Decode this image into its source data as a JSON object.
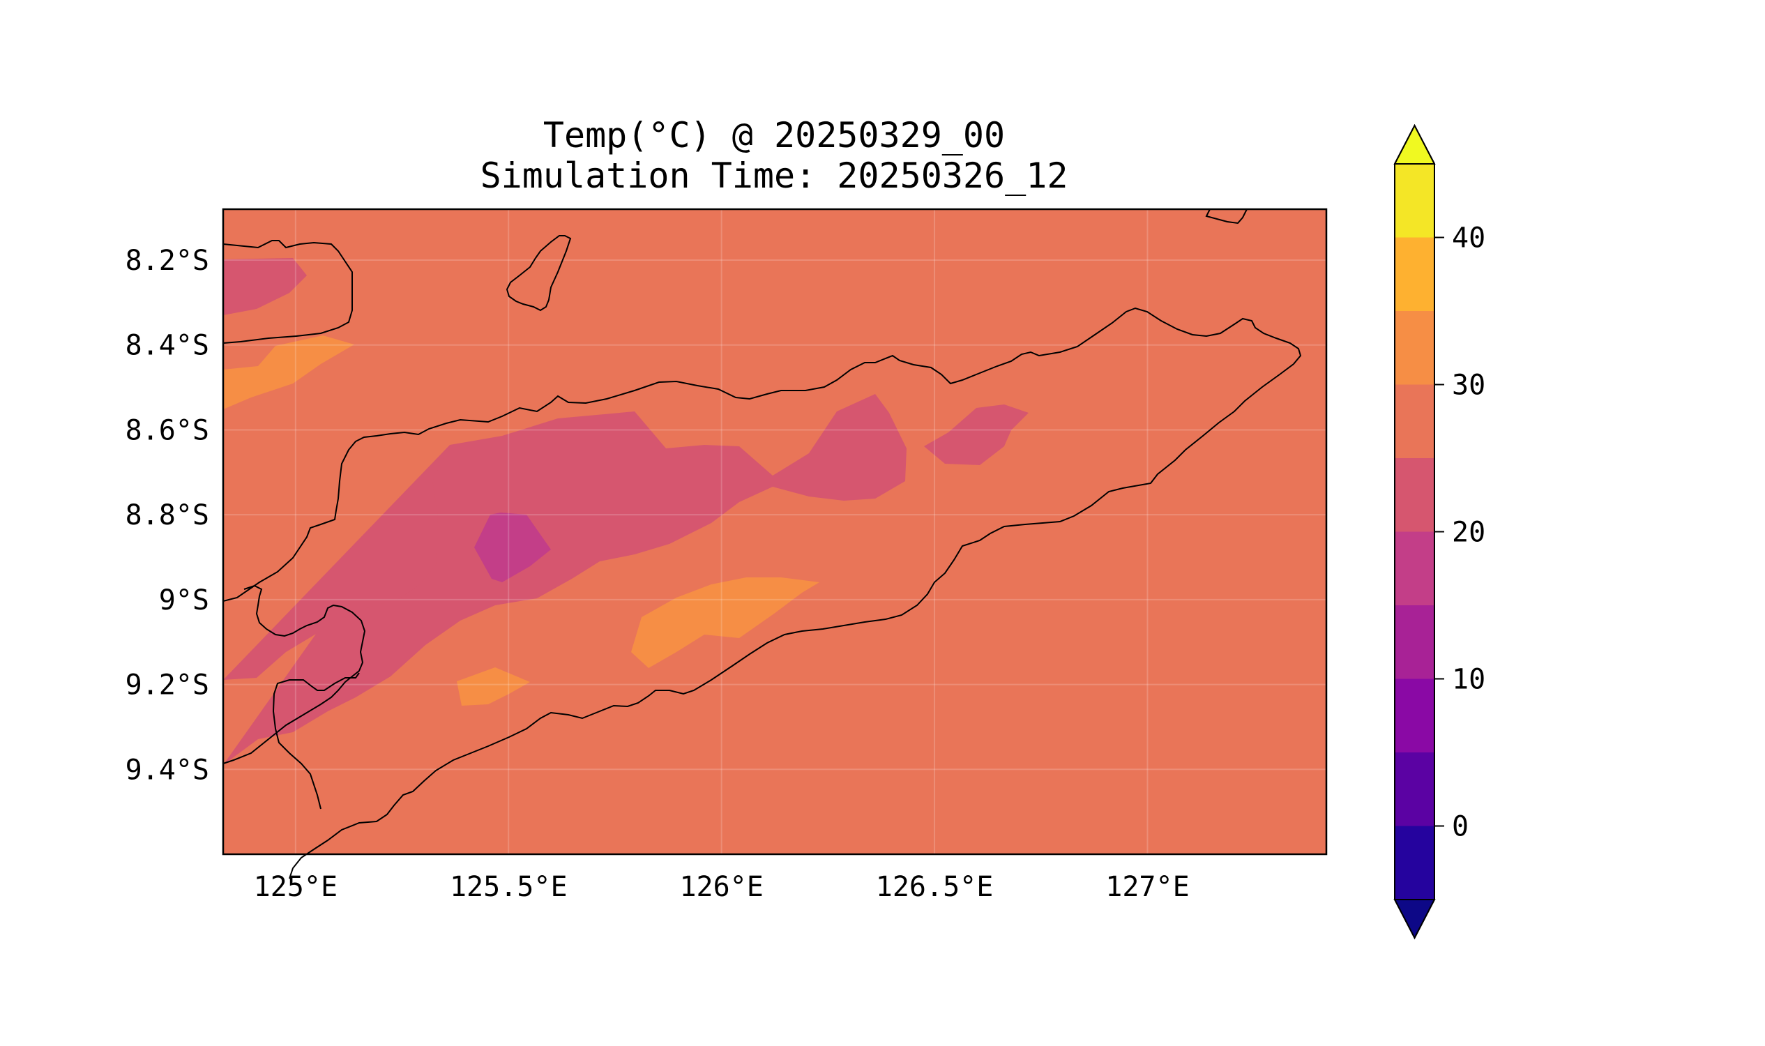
{
  "title": "Temp(°C) @ 20250329_00",
  "subtitle": "Simulation Time: 20250326_12",
  "map": {
    "type": "filled-contour",
    "lon_range": [
      124.83,
      127.42
    ],
    "lat_range": [
      -9.6,
      -8.08
    ],
    "x_ticks": [
      {
        "value": 125.0,
        "label": "125°E"
      },
      {
        "value": 125.5,
        "label": "125.5°E"
      },
      {
        "value": 126.0,
        "label": "126°E"
      },
      {
        "value": 126.5,
        "label": "126.5°E"
      },
      {
        "value": 127.0,
        "label": "127°E"
      }
    ],
    "y_ticks": [
      {
        "value": -8.2,
        "label": "8.2°S"
      },
      {
        "value": -8.4,
        "label": "8.4°S"
      },
      {
        "value": -8.6,
        "label": "8.6°S"
      },
      {
        "value": -8.8,
        "label": "8.8°S"
      },
      {
        "value": -9.0,
        "label": "9°S"
      },
      {
        "value": -9.2,
        "label": "9.2°S"
      },
      {
        "value": -9.4,
        "label": "9.4°S"
      }
    ],
    "grid": true,
    "coastlines": true
  },
  "colorbar": {
    "colormap": "plasma",
    "levels": [
      -5,
      0,
      5,
      10,
      15,
      20,
      25,
      30,
      35,
      40,
      45
    ],
    "extend": "both",
    "tick_values": [
      0,
      10,
      20,
      30,
      40
    ],
    "tick_labels": [
      "0",
      "10",
      "20",
      "30",
      "40"
    ],
    "colors": [
      "#1b0c7d",
      "#25039e",
      "#5b02a3",
      "#8a09a5",
      "#a82296",
      "#c33e88",
      "#d6566f",
      "#e97558",
      "#f68e45",
      "#feb130",
      "#f4e626",
      "#f0f921"
    ],
    "under_color": "#0d0887",
    "over_color": "#f0f921"
  },
  "chart_data": {
    "type": "heatmap",
    "title": "Temp(°C) @ 20250329_00",
    "subtitle": "Simulation Time: 20250326_12",
    "xlabel": "",
    "ylabel": "",
    "xlim": [
      124.83,
      127.42
    ],
    "ylim": [
      -9.6,
      -8.08
    ],
    "value_range_levels": [
      -5,
      0,
      5,
      10,
      15,
      20,
      25,
      30,
      35,
      40,
      45
    ],
    "regions": [
      {
        "name": "background",
        "level_range": [
          25,
          30
        ]
      },
      {
        "name": "northwest-cool-patch",
        "level_range": [
          20,
          25
        ]
      },
      {
        "name": "northwest-warm-patch",
        "level_range": [
          30,
          35
        ]
      },
      {
        "name": "central-cool-band",
        "level_range": [
          20,
          25
        ]
      },
      {
        "name": "central-coldest-core",
        "level_range": [
          15,
          20
        ]
      },
      {
        "name": "east-cool-patch",
        "level_range": [
          20,
          25
        ]
      },
      {
        "name": "southwest-cool-band",
        "level_range": [
          20,
          25
        ]
      },
      {
        "name": "south-warm-patch",
        "level_range": [
          30,
          35
        ]
      },
      {
        "name": "south-small-warm-patch",
        "level_range": [
          30,
          35
        ]
      }
    ]
  }
}
